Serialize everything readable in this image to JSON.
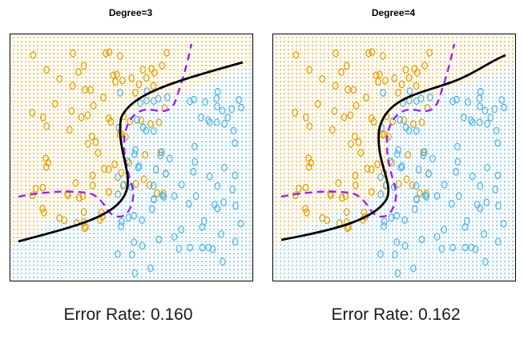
{
  "colors": {
    "class_orange": "#E69F00",
    "class_blue": "#56B4E9",
    "boundary_svm": "#000000",
    "boundary_bayes": "#A020F0"
  },
  "panels": [
    {
      "title": "Degree=3",
      "error_text": "Error Rate: 0.160"
    },
    {
      "title": "Degree=4",
      "error_text": "Error Rate: 0.162"
    }
  ]
}
